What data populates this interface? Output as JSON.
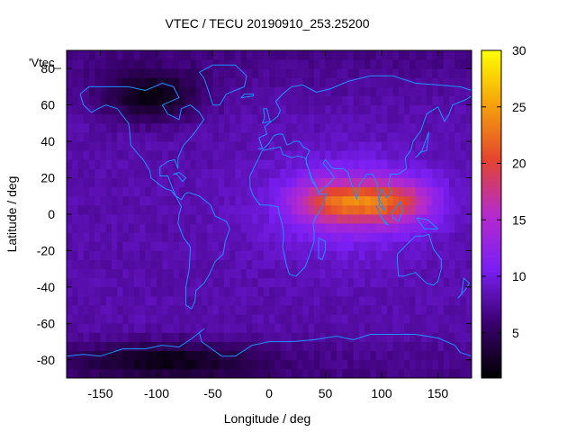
{
  "chart_data": {
    "type": "heatmap",
    "title": "VTEC / TECU 20190910_253.25200",
    "xlabel": "Longitude / deg",
    "ylabel": "Latitude / deg",
    "series_key": "'Vtec_",
    "xlim": [
      -180,
      180
    ],
    "ylim": [
      -90,
      90
    ],
    "x_ticks": [
      "-150",
      "-100",
      "-50",
      "0",
      "50",
      "100",
      "150"
    ],
    "y_ticks": [
      "-80",
      "-60",
      "-40",
      "-20",
      "0",
      "20",
      "40",
      "60",
      "80"
    ],
    "colorbar": {
      "range": [
        1,
        30
      ],
      "ticks": [
        "5",
        "10",
        "15",
        "20",
        "25",
        "30"
      ],
      "palette": [
        "#000000",
        "#3a006e",
        "#7b1ff4",
        "#b62bcc",
        "#e4452e",
        "#f5a10a",
        "#ffff00"
      ]
    },
    "features": [
      {
        "name": "equatorial-anomaly-crest",
        "lon_center": 85,
        "lat_center": 7,
        "lon_halfwidth": 55,
        "lat_halfwidth": 11,
        "peak_vtec": 20
      },
      {
        "name": "north-american-minimum",
        "lon_center": -105,
        "lat_center": 65,
        "lon_halfwidth": 45,
        "lat_halfwidth": 14,
        "min_vtec": 2
      },
      {
        "name": "antarctic-minimum",
        "lon_center": -90,
        "lat_center": -80,
        "lon_halfwidth": 85,
        "lat_halfwidth": 10,
        "min_vtec": 3
      },
      {
        "name": "background",
        "vtec": 8
      }
    ]
  }
}
